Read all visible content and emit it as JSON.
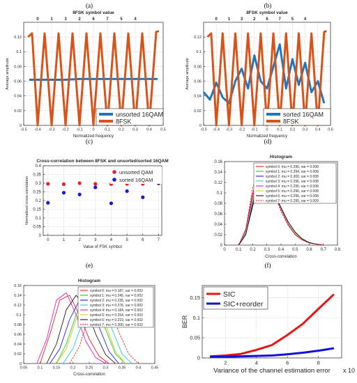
{
  "panel_labels": [
    "(a)",
    "(b)",
    "(c)",
    "(d)",
    "(e)",
    "(f)"
  ],
  "chart_data": [
    {
      "id": "a",
      "type": "line",
      "title": "8FSK symbol value",
      "xlabel": "Normalized frequency",
      "ylabel": "Average amplitude",
      "xlim": [
        -0.5,
        0.5
      ],
      "ylim": [
        0,
        0.14
      ],
      "xticks": [
        -0.5,
        -0.4,
        -0.3,
        -0.2,
        -0.1,
        0,
        0.1,
        0.2,
        0.3,
        0.4,
        0.5
      ],
      "yticks": [
        0,
        0.02,
        0.04,
        0.06,
        0.08,
        0.1,
        0.12
      ],
      "top_ticks": [
        -0.4,
        -0.3,
        -0.2,
        -0.1,
        0,
        0.1,
        0.2,
        0.3,
        0.4
      ],
      "top_labels": [
        "0",
        "1",
        "3",
        "2",
        "6",
        "7",
        "5",
        "4"
      ],
      "grid": true,
      "legend": "bottom-right",
      "series": [
        {
          "name": "unsorted 16QAM",
          "color": "#1f77c0",
          "width": 3,
          "x": [
            -0.46,
            -0.4,
            -0.3,
            -0.2,
            -0.1,
            0,
            0.1,
            0.2,
            0.3,
            0.4,
            0.46
          ],
          "y": [
            0.062,
            0.062,
            0.062,
            0.062,
            0.063,
            0.063,
            0.063,
            0.063,
            0.063,
            0.063,
            0.063
          ]
        },
        {
          "name": "8FSK",
          "color": "#d95319",
          "width": 3,
          "x": [
            -0.47,
            -0.44,
            -0.4,
            -0.35,
            -0.3,
            -0.25,
            -0.2,
            -0.15,
            -0.1,
            -0.05,
            0,
            0.05,
            0.1,
            0.15,
            0.2,
            0.25,
            0.3,
            0.35,
            0.4,
            0.45,
            0.47
          ],
          "y": [
            0.12,
            0.125,
            0.0,
            0.125,
            0.0,
            0.125,
            0.0,
            0.125,
            0.0,
            0.125,
            0.0,
            0.125,
            0.0,
            0.125,
            0.0,
            0.125,
            0.0,
            0.125,
            0.0,
            0.127,
            0.128
          ]
        }
      ]
    },
    {
      "id": "b",
      "type": "line",
      "title": "8FSK symbol value",
      "xlabel": "Normalized frequency",
      "ylabel": "Average amplitude",
      "xlim": [
        -0.5,
        0.5
      ],
      "ylim": [
        0,
        0.14
      ],
      "xticks": [
        -0.5,
        -0.4,
        -0.3,
        -0.2,
        -0.1,
        0,
        0.1,
        0.2,
        0.3,
        0.4,
        0.5
      ],
      "yticks": [
        0,
        0.02,
        0.04,
        0.06,
        0.08,
        0.1,
        0.12
      ],
      "top_ticks": [
        -0.4,
        -0.3,
        -0.2,
        -0.1,
        0,
        0.1,
        0.2,
        0.3,
        0.4
      ],
      "top_labels": [
        "0",
        "1",
        "3",
        "2",
        "6",
        "7",
        "5",
        "4"
      ],
      "grid": true,
      "legend": "bottom-right",
      "series": [
        {
          "name": "sorted 16QAM",
          "color": "#1f77c0",
          "width": 3,
          "x": [
            -0.5,
            -0.45,
            -0.4,
            -0.35,
            -0.3,
            -0.25,
            -0.2,
            -0.15,
            -0.1,
            -0.05,
            0,
            0.05,
            0.1,
            0.15,
            0.2,
            0.25,
            0.3,
            0.35,
            0.4,
            0.45
          ],
          "y": [
            0.045,
            0.035,
            0.058,
            0.038,
            0.03,
            0.06,
            0.077,
            0.05,
            0.095,
            0.06,
            0.05,
            0.08,
            0.11,
            0.05,
            0.09,
            0.055,
            0.085,
            0.045,
            0.06,
            0.03
          ]
        },
        {
          "name": "8FSK",
          "color": "#d95319",
          "width": 3,
          "x": [
            -0.47,
            -0.44,
            -0.4,
            -0.35,
            -0.3,
            -0.25,
            -0.2,
            -0.15,
            -0.1,
            -0.05,
            0,
            0.05,
            0.1,
            0.15,
            0.2,
            0.25,
            0.3,
            0.35,
            0.4,
            0.45,
            0.47
          ],
          "y": [
            0.12,
            0.125,
            0.0,
            0.125,
            0.0,
            0.125,
            0.0,
            0.125,
            0.0,
            0.125,
            0.0,
            0.125,
            0.0,
            0.125,
            0.0,
            0.125,
            0.0,
            0.125,
            0.0,
            0.127,
            0.128
          ]
        }
      ]
    },
    {
      "id": "c",
      "type": "scatter",
      "title": "Cross-correlation between 8FSK and unsorted/sorted 16QAM",
      "xlabel": "Value of FSK symbol",
      "ylabel": "Normalized cross-correlation",
      "xlim": [
        -0.3,
        7.2
      ],
      "ylim": [
        0,
        0.4
      ],
      "xticks": [
        0,
        1,
        2,
        3,
        4,
        5,
        6,
        7
      ],
      "yticks": [
        0,
        0.05,
        0.1,
        0.15,
        0.2,
        0.25,
        0.3,
        0.35,
        0.4
      ],
      "grid": true,
      "legend": "top-right",
      "series": [
        {
          "name": "unsorted QAM",
          "color": "#e8202a",
          "x": [
            0,
            1,
            2,
            3,
            4,
            5,
            6,
            7
          ],
          "y": [
            0.296,
            0.294,
            0.3,
            0.296,
            0.295,
            0.296,
            0.296,
            0.299
          ]
        },
        {
          "name": "sorted 16QAM",
          "color": "#1a1ad6",
          "x": [
            0,
            1,
            2,
            3,
            4,
            5,
            6,
            7
          ],
          "y": [
            0.187,
            0.245,
            0.235,
            0.276,
            0.184,
            0.254,
            0.219,
            0.3
          ]
        }
      ]
    },
    {
      "id": "d",
      "type": "line",
      "title": "Histogram",
      "xlabel": "Cross-correlation",
      "ylabel": "",
      "xlim": [
        0,
        0.8
      ],
      "ylim": [
        0,
        0.16
      ],
      "xticks": [
        0,
        0.1,
        0.2,
        0.3,
        0.4,
        0.5,
        0.6,
        0.7,
        0.8
      ],
      "yticks": [
        0,
        0.02,
        0.04,
        0.06,
        0.08,
        0.1,
        0.12,
        0.14,
        0.16
      ],
      "grid": false,
      "legend": "top-right",
      "series": [
        {
          "name": "symbol 0: mu = 0.296, var = 0.008",
          "color": "#ff0000",
          "dash": false,
          "x": [
            0.1,
            0.15,
            0.2,
            0.25,
            0.28,
            0.3,
            0.35,
            0.4,
            0.45,
            0.5,
            0.55,
            0.6,
            0.65,
            0.7
          ],
          "y": [
            0.0,
            0.03,
            0.1,
            0.14,
            0.145,
            0.13,
            0.1,
            0.07,
            0.04,
            0.02,
            0.01,
            0.004,
            0.002,
            0.0
          ]
        },
        {
          "name": "symbol 1: mu = 0.294, var = 0.008",
          "color": "#00cc00",
          "dash": false,
          "x": [
            0.1,
            0.15,
            0.2,
            0.25,
            0.28,
            0.3,
            0.35,
            0.4,
            0.45,
            0.5,
            0.55,
            0.6,
            0.65,
            0.7
          ],
          "y": [
            0.0,
            0.02,
            0.085,
            0.13,
            0.138,
            0.13,
            0.105,
            0.07,
            0.04,
            0.022,
            0.01,
            0.004,
            0.002,
            0.0
          ]
        },
        {
          "name": "symbol 2: mu = 0.300, var = 0.008",
          "color": "#0000ff",
          "dash": false,
          "x": [
            0.1,
            0.15,
            0.2,
            0.25,
            0.28,
            0.3,
            0.35,
            0.4,
            0.45,
            0.5,
            0.55,
            0.6,
            0.65,
            0.7
          ],
          "y": [
            0.0,
            0.02,
            0.08,
            0.125,
            0.137,
            0.132,
            0.1,
            0.072,
            0.045,
            0.025,
            0.012,
            0.005,
            0.002,
            0.0
          ]
        },
        {
          "name": "symbol 3: mu = 0.296, var = 0.008",
          "color": "#00cccc",
          "dash": false,
          "x": [
            0.1,
            0.15,
            0.2,
            0.25,
            0.28,
            0.3,
            0.35,
            0.4,
            0.45,
            0.5,
            0.55,
            0.6,
            0.65,
            0.7
          ],
          "y": [
            0.0,
            0.025,
            0.09,
            0.13,
            0.14,
            0.133,
            0.1,
            0.068,
            0.04,
            0.02,
            0.01,
            0.004,
            0.002,
            0.0
          ]
        },
        {
          "name": "symbol 4: mu = 0.295, var = 0.008",
          "color": "#dd00dd",
          "dash": false,
          "x": [
            0.1,
            0.15,
            0.2,
            0.25,
            0.28,
            0.3,
            0.35,
            0.4,
            0.45,
            0.5,
            0.55,
            0.6,
            0.65,
            0.7
          ],
          "y": [
            0.0,
            0.028,
            0.095,
            0.135,
            0.142,
            0.13,
            0.1,
            0.068,
            0.04,
            0.02,
            0.01,
            0.004,
            0.002,
            0.0
          ]
        },
        {
          "name": "symbol 5: mu = 0.296, var = 0.008",
          "color": "#c8c800",
          "dash": false,
          "x": [
            0.1,
            0.15,
            0.2,
            0.25,
            0.28,
            0.3,
            0.35,
            0.4,
            0.45,
            0.5,
            0.55,
            0.6,
            0.65,
            0.7
          ],
          "y": [
            0.0,
            0.022,
            0.088,
            0.128,
            0.136,
            0.13,
            0.102,
            0.07,
            0.042,
            0.022,
            0.011,
            0.004,
            0.002,
            0.0
          ]
        },
        {
          "name": "symbol 6: mu = 0.296, var = 0.008",
          "color": "#000000",
          "dash": false,
          "x": [
            0.1,
            0.15,
            0.2,
            0.25,
            0.28,
            0.3,
            0.35,
            0.4,
            0.45,
            0.5,
            0.55,
            0.6,
            0.65,
            0.7
          ],
          "y": [
            0.0,
            0.02,
            0.075,
            0.118,
            0.124,
            0.12,
            0.1,
            0.072,
            0.045,
            0.025,
            0.012,
            0.005,
            0.002,
            0.0
          ]
        },
        {
          "name": "symbol 7: mu = 0.295, var = 0.009",
          "color": "#ff0000",
          "dash": true,
          "x": [
            0.1,
            0.15,
            0.2,
            0.25,
            0.28,
            0.3,
            0.35,
            0.4,
            0.45,
            0.5,
            0.55,
            0.6,
            0.65,
            0.7
          ],
          "y": [
            0.0,
            0.03,
            0.11,
            0.145,
            0.148,
            0.135,
            0.1,
            0.065,
            0.038,
            0.02,
            0.01,
            0.004,
            0.002,
            0.0
          ]
        }
      ]
    },
    {
      "id": "e",
      "type": "line",
      "title": "Histogram",
      "xlabel": "Cross-correlation",
      "ylabel": "",
      "xlim": [
        0.05,
        0.45
      ],
      "ylim": [
        0,
        0.16
      ],
      "xticks": [
        0.05,
        0.1,
        0.15,
        0.2,
        0.25,
        0.3,
        0.35,
        0.4,
        0.45
      ],
      "yticks": [
        0,
        0.02,
        0.04,
        0.06,
        0.08,
        0.1,
        0.12,
        0.14,
        0.16
      ],
      "grid": false,
      "legend": "top-right",
      "series": [
        {
          "name": "symbol 0: mu = 0.187, var = 0.002",
          "color": "#ff0000",
          "dash": false,
          "x": [
            0.1,
            0.13,
            0.16,
            0.19,
            0.22,
            0.25,
            0.28,
            0.31
          ],
          "y": [
            0.0,
            0.06,
            0.13,
            0.14,
            0.1,
            0.05,
            0.015,
            0.0
          ]
        },
        {
          "name": "symbol 1: mu = 0.245, var = 0.002",
          "color": "#00cc00",
          "dash": false,
          "x": [
            0.15,
            0.18,
            0.21,
            0.24,
            0.27,
            0.3,
            0.33,
            0.36
          ],
          "y": [
            0.0,
            0.04,
            0.1,
            0.135,
            0.125,
            0.07,
            0.02,
            0.0
          ]
        },
        {
          "name": "symbol 2: mu = 0.235, var = 0.002",
          "color": "#0000ff",
          "dash": false,
          "x": [
            0.13,
            0.16,
            0.19,
            0.22,
            0.25,
            0.28,
            0.31,
            0.34
          ],
          "y": [
            0.0,
            0.03,
            0.09,
            0.13,
            0.12,
            0.075,
            0.025,
            0.0
          ]
        },
        {
          "name": "symbol 3: mu = 0.276, var = 0.002",
          "color": "#00cccc",
          "dash": false,
          "x": [
            0.17,
            0.2,
            0.23,
            0.26,
            0.29,
            0.32,
            0.35,
            0.38
          ],
          "y": [
            0.0,
            0.03,
            0.085,
            0.13,
            0.12,
            0.07,
            0.02,
            0.0
          ]
        },
        {
          "name": "symbol 4: mu = 0.184, var = 0.002",
          "color": "#dd00dd",
          "dash": false,
          "x": [
            0.09,
            0.12,
            0.15,
            0.18,
            0.21,
            0.24,
            0.27,
            0.3
          ],
          "y": [
            0.0,
            0.05,
            0.13,
            0.145,
            0.1,
            0.045,
            0.012,
            0.0
          ]
        },
        {
          "name": "symbol 5: mu = 0.254, var = 0.002",
          "color": "#c8c800",
          "dash": false,
          "x": [
            0.15,
            0.18,
            0.21,
            0.24,
            0.27,
            0.3,
            0.33,
            0.36
          ],
          "y": [
            0.0,
            0.03,
            0.09,
            0.125,
            0.13,
            0.08,
            0.025,
            0.0
          ]
        },
        {
          "name": "symbol 6: mu = 0.219, var = 0.002",
          "color": "#000000",
          "dash": false,
          "x": [
            0.12,
            0.15,
            0.18,
            0.21,
            0.24,
            0.27,
            0.3,
            0.33
          ],
          "y": [
            0.0,
            0.04,
            0.11,
            0.14,
            0.115,
            0.06,
            0.018,
            0.0
          ]
        },
        {
          "name": "symbol 7: mu = 0.300, var = 0.002",
          "color": "#ff0000",
          "dash": true,
          "x": [
            0.19,
            0.22,
            0.25,
            0.28,
            0.31,
            0.34,
            0.37,
            0.4
          ],
          "y": [
            0.0,
            0.035,
            0.1,
            0.145,
            0.12,
            0.065,
            0.02,
            0.0
          ]
        }
      ]
    },
    {
      "id": "f",
      "type": "line",
      "title": "",
      "xlabel": "Variance of the channel estimation error",
      "xlabel_suffix": "x 10",
      "ylabel": "BER",
      "xlim": [
        0.5,
        9.5
      ],
      "ylim": [
        0,
        0.18
      ],
      "xticks": [
        2,
        4,
        6,
        8
      ],
      "yticks": [
        0,
        0.05,
        0.1,
        0.15
      ],
      "grid": true,
      "legend": "top-left",
      "series": [
        {
          "name": "SIC",
          "color": "#ee1111",
          "width": 3,
          "x": [
            1,
            2,
            3,
            4,
            5,
            6,
            7,
            8,
            9
          ],
          "y": [
            0.004,
            0.006,
            0.01,
            0.02,
            0.032,
            0.057,
            0.085,
            0.122,
            0.158
          ]
        },
        {
          "name": "SIC+reorder",
          "color": "#1111dd",
          "width": 3,
          "x": [
            1,
            2,
            3,
            4,
            5,
            6,
            7,
            8,
            9
          ],
          "y": [
            0.003,
            0.003,
            0.004,
            0.005,
            0.006,
            0.009,
            0.013,
            0.018,
            0.024
          ]
        }
      ]
    }
  ]
}
